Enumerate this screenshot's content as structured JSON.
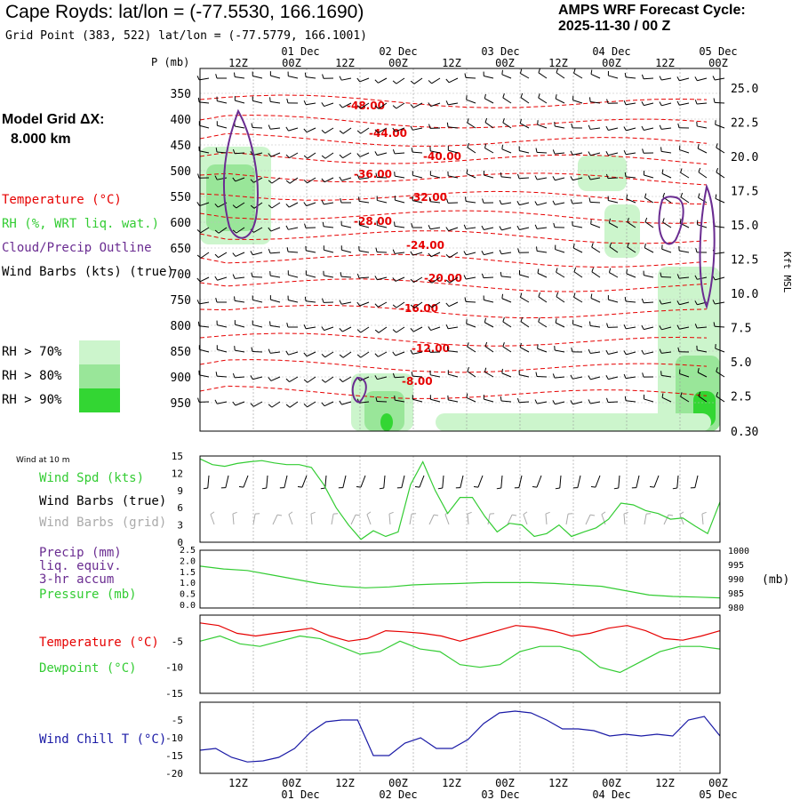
{
  "header": {
    "title": "Cape Royds:  lat/lon = (-77.5530, 166.1690)",
    "subtitle": "Grid Point (383, 522) lat/lon = (-77.5779, 166.1001)",
    "cycle_line1": "AMPS WRF Forecast Cycle:",
    "cycle_line2": "2025-11-30 / 00  Z"
  },
  "model_grid": {
    "label": "Model Grid ΔX:",
    "value": "8.000 km"
  },
  "legend": {
    "temperature": "Temperature (°C)",
    "rh": "RH (%, WRT liq. wat.)",
    "cloud": "Cloud/Precip Outline",
    "wind": "Wind Barbs (kts) (true)",
    "rh70": "RH > 70%",
    "rh80": "RH > 80%",
    "rh90": "RH > 90%"
  },
  "colors": {
    "rh70": "#ccf5cc",
    "rh80": "#99e699",
    "rh90": "#33d633",
    "temp": "#e60000",
    "cloud": "#6a2c91",
    "green": "#33cc33",
    "blue": "#1a1aa6",
    "gray": "#aaaaaa"
  },
  "time_axis": {
    "top_days": [
      "01 Dec",
      "02 Dec",
      "03 Dec",
      "04 Dec",
      "05 Dec"
    ],
    "bottom_days": [
      "01 Dec",
      "02 Dec",
      "03 Dec",
      "04 Dec",
      "05 Dec"
    ],
    "hour_labels": [
      "12Z",
      "00Z",
      "12Z",
      "00Z",
      "12Z",
      "00Z",
      "12Z",
      "00Z",
      "12Z",
      "00Z"
    ]
  },
  "chart_data": [
    {
      "id": "cross-section",
      "type": "contour",
      "ylabel": "P (mb)",
      "y2label": "Kft MSL",
      "pressure_ticks": [
        "350",
        "400",
        "450",
        "500",
        "550",
        "600",
        "650",
        "700",
        "750",
        "800",
        "850",
        "900",
        "950"
      ],
      "kft_ticks": [
        "25.0",
        "22.5",
        "20.0",
        "17.5",
        "15.0",
        "12.5",
        "10.0",
        "7.5",
        "5.0",
        "2.5",
        "0.30"
      ],
      "temperature_contour_labels": [
        "-48.00",
        "-44.00",
        "-40.00",
        "-36.00",
        "-32.00",
        "-28.00",
        "-24.00",
        "-20.00",
        "-16.00",
        "-12.00",
        "-8.00"
      ]
    },
    {
      "id": "wind",
      "type": "line",
      "small_title": "Wind at 10 m",
      "legend": [
        "Wind Spd (kts)",
        "Wind Barbs (true)",
        "Wind Barbs (grid)"
      ],
      "y_ticks": [
        "15",
        "12",
        "9",
        "6",
        "3",
        "0"
      ],
      "ylim": [
        0,
        15
      ],
      "speed": [
        14.5,
        13.5,
        13.2,
        13.7,
        14.0,
        14.2,
        13.8,
        13.5,
        13.5,
        13.0,
        10.0,
        6.0,
        3.0,
        0.5,
        2.0,
        1.0,
        1.8,
        10.0,
        14.0,
        9.0,
        5.0,
        7.8,
        7.8,
        4.5,
        1.8,
        3.3,
        3.0,
        1.0,
        1.5,
        3.0,
        1.0,
        1.8,
        2.5,
        4.0,
        6.8,
        6.5,
        5.5,
        5.0,
        4.0,
        4.2,
        2.8,
        1.5,
        7.0
      ]
    },
    {
      "id": "precip-pressure",
      "type": "line",
      "legend": [
        "Precip (mm)",
        "liq. equiv.",
        "3-hr accum",
        "Pressure (mb)"
      ],
      "y_ticks": [
        "2.5",
        "2.0",
        "1.5",
        "1.0",
        "0.5",
        "0.0"
      ],
      "y2_ticks": [
        "1000",
        "995",
        "990",
        "985",
        "980"
      ],
      "y2_unit": "(mb)",
      "ylim": [
        980,
        1000
      ],
      "pressure": [
        994.5,
        993.5,
        993.0,
        991.5,
        990.0,
        988.5,
        987.5,
        987.0,
        987.3,
        988.0,
        988.3,
        988.5,
        988.8,
        988.8,
        988.8,
        988.5,
        988.0,
        987.5,
        986.0,
        984.5,
        984.0,
        983.8,
        983.5
      ]
    },
    {
      "id": "temperature-dewpoint",
      "type": "line",
      "legend": [
        "Temperature (°C)",
        "Dewpoint (°C)"
      ],
      "y_ticks": [
        "-5",
        "-10",
        "-15"
      ],
      "ylim": [
        -15,
        0
      ],
      "temperature": [
        -1.5,
        -2.0,
        -3.5,
        -4.0,
        -3.5,
        -3.0,
        -2.5,
        -4.0,
        -5.0,
        -4.5,
        -3.0,
        -3.2,
        -3.5,
        -4.0,
        -5.0,
        -4.0,
        -3.0,
        -2.0,
        -2.3,
        -3.0,
        -4.0,
        -3.5,
        -2.5,
        -2.0,
        -3.0,
        -4.5,
        -4.8,
        -4.0,
        -3.0
      ],
      "dewpoint": [
        -5.0,
        -4.0,
        -5.5,
        -6.0,
        -5.0,
        -4.0,
        -4.5,
        -6.0,
        -7.5,
        -7.0,
        -5.0,
        -6.5,
        -7.0,
        -9.5,
        -10.0,
        -9.5,
        -7.0,
        -6.0,
        -6.0,
        -7.0,
        -10.0,
        -11.0,
        -9.0,
        -7.0,
        -6.0,
        -6.0,
        -6.5
      ]
    },
    {
      "id": "wind-chill",
      "type": "line",
      "legend": [
        "Wind Chill T (°C)"
      ],
      "y_ticks": [
        "-5",
        "-10",
        "-15",
        "-20"
      ],
      "ylim": [
        -20,
        0
      ],
      "wind_chill": [
        -13.5,
        -13.0,
        -15.5,
        -16.8,
        -16.5,
        -15.5,
        -13.0,
        -8.5,
        -5.5,
        -5.0,
        -5.0,
        -15.0,
        -15.0,
        -11.5,
        -10.0,
        -13.0,
        -13.0,
        -10.5,
        -6.0,
        -3.0,
        -2.5,
        -3.0,
        -5.0,
        -7.5,
        -7.5,
        -8.0,
        -9.5,
        -9.0,
        -9.5,
        -9.0,
        -9.5,
        -5.0,
        -4.0,
        -9.5
      ]
    }
  ]
}
